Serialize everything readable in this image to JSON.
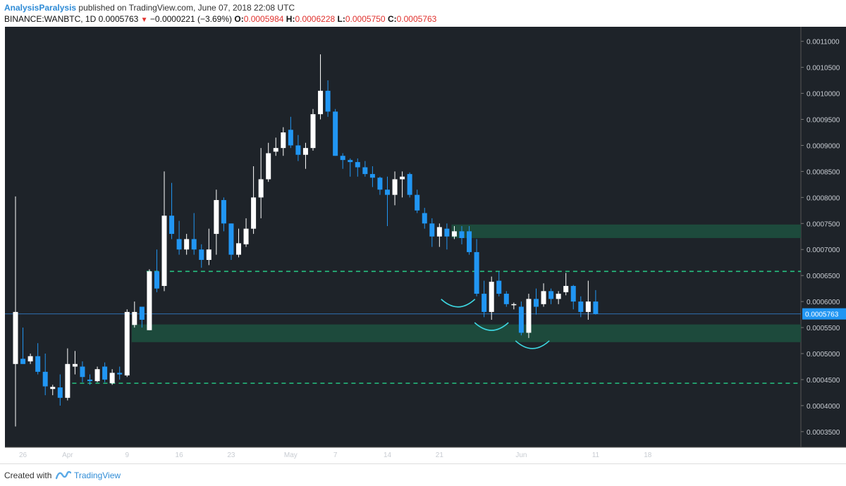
{
  "header": {
    "author": "AnalysisParalysis",
    "published": "published on TradingView.com, June 07, 2018 22:08 UTC",
    "symbol_line": "BINANCE:WANBTC, 1D",
    "last": "0.0005763",
    "change": "−0.0000221 (−3.69%)",
    "o_label": "O:",
    "o_value": "0.0005984",
    "h_label": "H:",
    "h_value": "0.0006228",
    "l_label": "L:",
    "l_value": "0.0005750",
    "c_label": "C:",
    "c_value": "0.0005763"
  },
  "footer": {
    "created": "Created with",
    "brand": "TradingView",
    "logo_icon": "tradingview-logo-icon"
  },
  "colors": {
    "background": "#1e2329",
    "up": "#ffffff",
    "down": "#2196f3",
    "zone": "#1d4a3c",
    "dashed": "#26c281",
    "arc": "#3dd6e0",
    "price_line": "#2e6fb0"
  },
  "chart_data": {
    "type": "candlestick",
    "x_ticks": [
      {
        "label": "26",
        "day": 1
      },
      {
        "label": "Apr",
        "day": 7
      },
      {
        "label": "9",
        "day": 15
      },
      {
        "label": "16",
        "day": 22
      },
      {
        "label": "23",
        "day": 29
      },
      {
        "label": "May",
        "day": 37
      },
      {
        "label": "7",
        "day": 43
      },
      {
        "label": "14",
        "day": 50
      },
      {
        "label": "21",
        "day": 57
      },
      {
        "label": "Jun",
        "day": 68
      },
      {
        "label": "11",
        "day": 78
      },
      {
        "label": "18",
        "day": 85
      }
    ],
    "y_ticks": [
      "0.0011000",
      "0.0010500",
      "0.0010000",
      "0.0009500",
      "0.0009000",
      "0.0008500",
      "0.0008000",
      "0.0007500",
      "0.0007000",
      "0.0006500",
      "0.0006000",
      "0.0005500",
      "0.0005000",
      "0.0004500",
      "0.0004000",
      "0.0003500"
    ],
    "ylim": [
      0.00032,
      0.001128
    ],
    "current_price": 0.0005763,
    "current_price_label": "0.0005763",
    "zones": [
      {
        "from": 0.000522,
        "to": 0.000556
      },
      {
        "from": 0.000722,
        "to": 0.000748
      }
    ],
    "dashed_levels": [
      0.000658,
      0.000443
    ],
    "arcs": [
      {
        "day": 59.5
      },
      {
        "day": 64.0
      },
      {
        "day": 69.5
      }
    ],
    "candles": [
      {
        "o": 0.00048,
        "h": 0.000802,
        "l": 0.00036,
        "c": 0.00058
      },
      {
        "o": 0.00049,
        "h": 0.00055,
        "l": 0.00048,
        "c": 0.00048
      },
      {
        "o": 0.000485,
        "h": 0.0005,
        "l": 0.00048,
        "c": 0.000495
      },
      {
        "o": 0.000495,
        "h": 0.00052,
        "l": 0.00046,
        "c": 0.000465
      },
      {
        "o": 0.000465,
        "h": 0.0005,
        "l": 0.00042,
        "c": 0.000437
      },
      {
        "o": 0.000432,
        "h": 0.00044,
        "l": 0.00042,
        "c": 0.000436
      },
      {
        "o": 0.000435,
        "h": 0.00046,
        "l": 0.0004,
        "c": 0.000415
      },
      {
        "o": 0.000415,
        "h": 0.00051,
        "l": 0.00041,
        "c": 0.00048
      },
      {
        "o": 0.000475,
        "h": 0.000505,
        "l": 0.00046,
        "c": 0.00048
      },
      {
        "o": 0.000475,
        "h": 0.000485,
        "l": 0.000445,
        "c": 0.000455
      },
      {
        "o": 0.00045,
        "h": 0.00046,
        "l": 0.00044,
        "c": 0.000447
      },
      {
        "o": 0.000447,
        "h": 0.000475,
        "l": 0.000445,
        "c": 0.00047
      },
      {
        "o": 0.000475,
        "h": 0.000483,
        "l": 0.000445,
        "c": 0.00045
      },
      {
        "o": 0.000443,
        "h": 0.00047,
        "l": 0.00044,
        "c": 0.000463
      },
      {
        "o": 0.000463,
        "h": 0.000475,
        "l": 0.00045,
        "c": 0.00046
      },
      {
        "o": 0.000458,
        "h": 0.000585,
        "l": 0.000455,
        "c": 0.00058
      },
      {
        "o": 0.000555,
        "h": 0.0006,
        "l": 0.00055,
        "c": 0.00058
      },
      {
        "o": 0.00059,
        "h": 0.00059,
        "l": 0.00055,
        "c": 0.000565
      },
      {
        "o": 0.000545,
        "h": 0.000662,
        "l": 0.000545,
        "c": 0.000658
      },
      {
        "o": 0.000658,
        "h": 0.0007,
        "l": 0.000618,
        "c": 0.000625
      },
      {
        "o": 0.00063,
        "h": 0.00085,
        "l": 0.00062,
        "c": 0.000765
      },
      {
        "o": 0.000765,
        "h": 0.000828,
        "l": 0.00072,
        "c": 0.00073
      },
      {
        "o": 0.00072,
        "h": 0.000755,
        "l": 0.00069,
        "c": 0.0007
      },
      {
        "o": 0.0007,
        "h": 0.00073,
        "l": 0.00069,
        "c": 0.00072
      },
      {
        "o": 0.00072,
        "h": 0.00077,
        "l": 0.00069,
        "c": 0.0007
      },
      {
        "o": 0.0007,
        "h": 0.00071,
        "l": 0.000665,
        "c": 0.00068
      },
      {
        "o": 0.00068,
        "h": 0.00074,
        "l": 0.00067,
        "c": 0.0007
      },
      {
        "o": 0.00073,
        "h": 0.000815,
        "l": 0.00069,
        "c": 0.000795
      },
      {
        "o": 0.000795,
        "h": 0.0008,
        "l": 0.000735,
        "c": 0.00075
      },
      {
        "o": 0.00075,
        "h": 0.00075,
        "l": 0.00068,
        "c": 0.00069
      },
      {
        "o": 0.00069,
        "h": 0.00074,
        "l": 0.000685,
        "c": 0.000712
      },
      {
        "o": 0.00071,
        "h": 0.00076,
        "l": 0.000705,
        "c": 0.00074
      },
      {
        "o": 0.00074,
        "h": 0.00086,
        "l": 0.00073,
        "c": 0.0008
      },
      {
        "o": 0.0008,
        "h": 0.000895,
        "l": 0.00076,
        "c": 0.000835
      },
      {
        "o": 0.000835,
        "h": 0.000905,
        "l": 0.00083,
        "c": 0.000885
      },
      {
        "o": 0.000888,
        "h": 0.000915,
        "l": 0.00088,
        "c": 0.000895
      },
      {
        "o": 0.000895,
        "h": 0.000935,
        "l": 0.00088,
        "c": 0.000925
      },
      {
        "o": 0.00093,
        "h": 0.000955,
        "l": 0.000895,
        "c": 0.0009
      },
      {
        "o": 0.0009,
        "h": 0.00092,
        "l": 0.00087,
        "c": 0.000882
      },
      {
        "o": 0.000882,
        "h": 0.000905,
        "l": 0.000855,
        "c": 0.000895
      },
      {
        "o": 0.000895,
        "h": 0.00097,
        "l": 0.00089,
        "c": 0.00096
      },
      {
        "o": 0.00096,
        "h": 0.001075,
        "l": 0.00095,
        "c": 0.001005
      },
      {
        "o": 0.001005,
        "h": 0.001025,
        "l": 0.000955,
        "c": 0.000965
      },
      {
        "o": 0.000965,
        "h": 0.00097,
        "l": 0.00088,
        "c": 0.00088
      },
      {
        "o": 0.00088,
        "h": 0.000885,
        "l": 0.000855,
        "c": 0.000872
      },
      {
        "o": 0.000872,
        "h": 0.000875,
        "l": 0.00084,
        "c": 0.000868
      },
      {
        "o": 0.000868,
        "h": 0.000875,
        "l": 0.00084,
        "c": 0.000858
      },
      {
        "o": 0.000858,
        "h": 0.00087,
        "l": 0.00084,
        "c": 0.000845
      },
      {
        "o": 0.000845,
        "h": 0.00086,
        "l": 0.00082,
        "c": 0.000838
      },
      {
        "o": 0.000838,
        "h": 0.00084,
        "l": 0.000805,
        "c": 0.000815
      },
      {
        "o": 0.000815,
        "h": 0.00084,
        "l": 0.000745,
        "c": 0.000805
      },
      {
        "o": 0.000805,
        "h": 0.00085,
        "l": 0.000785,
        "c": 0.000835
      },
      {
        "o": 0.000835,
        "h": 0.00085,
        "l": 0.0008,
        "c": 0.00084
      },
      {
        "o": 0.000845,
        "h": 0.000848,
        "l": 0.0008,
        "c": 0.000805
      },
      {
        "o": 0.000805,
        "h": 0.000815,
        "l": 0.00077,
        "c": 0.000775
      },
      {
        "o": 0.00077,
        "h": 0.00078,
        "l": 0.00074,
        "c": 0.00075
      },
      {
        "o": 0.00075,
        "h": 0.00076,
        "l": 0.000705,
        "c": 0.000725
      },
      {
        "o": 0.000725,
        "h": 0.00075,
        "l": 0.000705,
        "c": 0.000743
      },
      {
        "o": 0.00074,
        "h": 0.00075,
        "l": 0.0007,
        "c": 0.000725
      },
      {
        "o": 0.000725,
        "h": 0.000745,
        "l": 0.00072,
        "c": 0.000735
      },
      {
        "o": 0.000735,
        "h": 0.000745,
        "l": 0.00071,
        "c": 0.000722
      },
      {
        "o": 0.000735,
        "h": 0.000745,
        "l": 0.00069,
        "c": 0.000695
      },
      {
        "o": 0.000695,
        "h": 0.00072,
        "l": 0.00061,
        "c": 0.000615
      },
      {
        "o": 0.000615,
        "h": 0.00064,
        "l": 0.00057,
        "c": 0.00058
      },
      {
        "o": 0.00058,
        "h": 0.000648,
        "l": 0.000565,
        "c": 0.000638
      },
      {
        "o": 0.00064,
        "h": 0.000658,
        "l": 0.00061,
        "c": 0.000615
      },
      {
        "o": 0.000615,
        "h": 0.00062,
        "l": 0.00059,
        "c": 0.000595
      },
      {
        "o": 0.000595,
        "h": 0.000598,
        "l": 0.000585,
        "c": 0.000595
      },
      {
        "o": 0.00059,
        "h": 0.0006,
        "l": 0.000535,
        "c": 0.00054
      },
      {
        "o": 0.00054,
        "h": 0.000615,
        "l": 0.00053,
        "c": 0.000605
      },
      {
        "o": 0.000605,
        "h": 0.000625,
        "l": 0.000575,
        "c": 0.00059
      },
      {
        "o": 0.000595,
        "h": 0.000635,
        "l": 0.00059,
        "c": 0.00062
      },
      {
        "o": 0.00062,
        "h": 0.000625,
        "l": 0.000595,
        "c": 0.000605
      },
      {
        "o": 0.000605,
        "h": 0.00062,
        "l": 0.000595,
        "c": 0.000615
      },
      {
        "o": 0.000618,
        "h": 0.000655,
        "l": 0.000612,
        "c": 0.00063
      },
      {
        "o": 0.00063,
        "h": 0.000632,
        "l": 0.000585,
        "c": 0.0006
      },
      {
        "o": 0.0006,
        "h": 0.00061,
        "l": 0.00057,
        "c": 0.00058
      },
      {
        "o": 0.00058,
        "h": 0.00064,
        "l": 0.000565,
        "c": 0.0006
      },
      {
        "o": 0.0006,
        "h": 0.000622,
        "l": 0.000575,
        "c": 0.000576
      }
    ]
  }
}
